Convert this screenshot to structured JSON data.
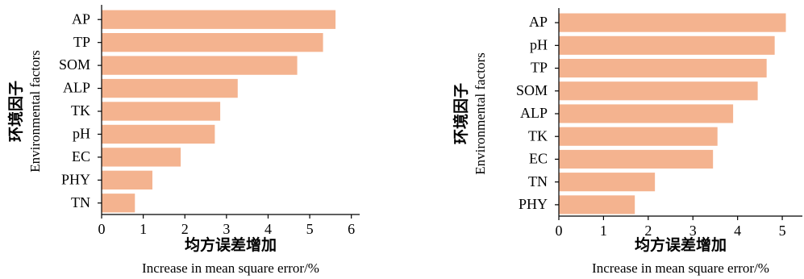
{
  "chart_data": [
    {
      "type": "bar",
      "orientation": "horizontal",
      "categories": [
        "AP",
        "TP",
        "SOM",
        "ALP",
        "TK",
        "pH",
        "EC",
        "PHY",
        "TN"
      ],
      "values": [
        5.62,
        5.32,
        4.7,
        3.27,
        2.85,
        2.72,
        1.9,
        1.22,
        0.8
      ],
      "xlabel_cn": "均方误差增加",
      "xlabel_en": "Increase in mean square error/%",
      "ylabel_cn": "环境因子",
      "ylabel_en": "Environmental factors",
      "xlim": [
        0,
        6.2
      ],
      "xticks": [
        "0",
        "1",
        "2",
        "3",
        "4",
        "5",
        "6"
      ],
      "bar_color": "#f4b38f",
      "grid": false
    },
    {
      "type": "bar",
      "orientation": "horizontal",
      "categories": [
        "AP",
        "pH",
        "TP",
        "SOM",
        "ALP",
        "TK",
        "EC",
        "TN",
        "PHY"
      ],
      "values": [
        5.08,
        4.83,
        4.65,
        4.45,
        3.9,
        3.55,
        3.45,
        2.15,
        1.7
      ],
      "xlabel_cn": "均方误差增加",
      "xlabel_en": "Increase in mean square error/%",
      "ylabel_cn": "环境因子",
      "ylabel_en": "Environmental factors",
      "xlim": [
        0,
        5.45
      ],
      "xticks": [
        "0",
        "1",
        "2",
        "3",
        "4",
        "5"
      ],
      "bar_color": "#f4b38f",
      "grid": false
    }
  ]
}
